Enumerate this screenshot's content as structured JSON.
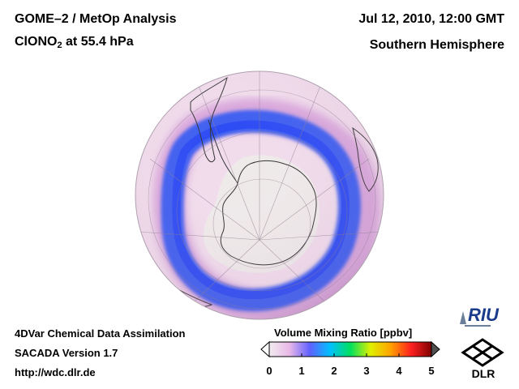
{
  "header": {
    "title_line1": "GOME–2 / MetOp Analysis",
    "species_prefix": "ClONO",
    "species_subscript": "2",
    "species_suffix": " at 55.4 hPa",
    "datetime": "Jul 12, 2010, 12:00 GMT",
    "hemisphere": "Southern Hemisphere"
  },
  "footer": {
    "line1": "4DVar Chemical Data Assimilation",
    "line2": "SACADA Version 1.7",
    "line3": "http://wdc.dlr.de"
  },
  "colorbar": {
    "title": "Volume Mixing Ratio [ppbv]",
    "min": 0,
    "max": 5,
    "ticks": [
      "0",
      "1",
      "2",
      "3",
      "4",
      "5"
    ],
    "colors": [
      "#f2ecef",
      "#e8b8e8",
      "#6060ff",
      "#00c0ff",
      "#00e060",
      "#e0f000",
      "#ffa000",
      "#ff2020",
      "#800000"
    ]
  },
  "map": {
    "projection": "orthographic",
    "center": "South Pole",
    "ocean_base_color": "#f1dcec",
    "band_color": "#3a5cf0",
    "vortex_interior_color": "#efeaea"
  },
  "logos": {
    "riu": "RIU",
    "dlr": "DLR"
  }
}
